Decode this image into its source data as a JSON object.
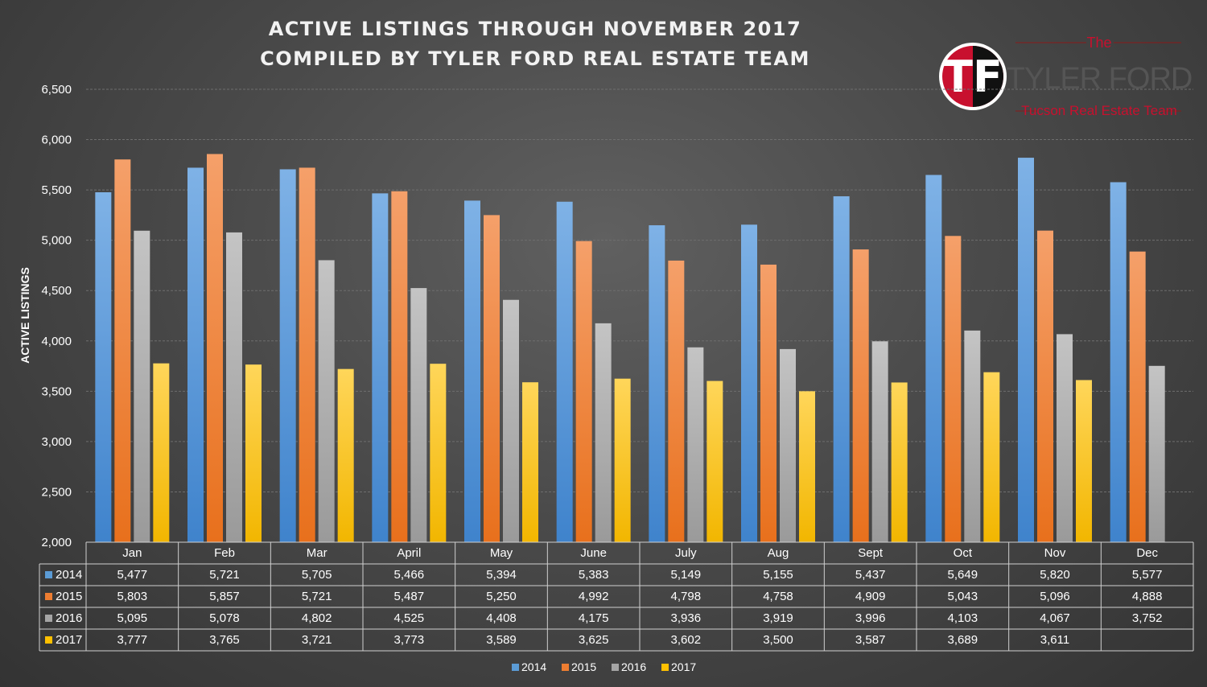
{
  "title_lines": [
    "ACTIVE LISTINGS THROUGH NOVEMBER 2017",
    "COMPILED BY TYLER FORD REAL ESTATE TEAM"
  ],
  "logo": {
    "monogram": "TF",
    "the": "The",
    "name": "TYLER FORD",
    "tagline": "Tucson Real Estate Team"
  },
  "colors": {
    "2014": "#5b9bd5",
    "2015": "#ed7d31",
    "2016": "#a5a5a5",
    "2017": "#ffc000"
  },
  "chart_data": {
    "type": "bar",
    "title": "ACTIVE LISTINGS THROUGH NOVEMBER 2017 COMPILED BY TYLER FORD REAL ESTATE TEAM",
    "ylabel": "ACTIVE LISTINGS",
    "xlabel": "",
    "ylim": [
      2000,
      6500
    ],
    "yticks": [
      2000,
      2500,
      3000,
      3500,
      4000,
      4500,
      5000,
      5500,
      6000,
      6500
    ],
    "ytick_labels": [
      "2,000",
      "2,500",
      "3,000",
      "3,500",
      "4,000",
      "4,500",
      "5,000",
      "5,500",
      "6,000",
      "6,500"
    ],
    "grid": true,
    "legend_position": "bottom",
    "data_table": true,
    "categories": [
      "Jan",
      "Feb",
      "Mar",
      "April",
      "May",
      "June",
      "July",
      "Aug",
      "Sept",
      "Oct",
      "Nov",
      "Dec"
    ],
    "series": [
      {
        "name": "2014",
        "values": [
          5477,
          5721,
          5705,
          5466,
          5394,
          5383,
          5149,
          5155,
          5437,
          5649,
          5820,
          5577
        ],
        "labels": [
          "5,477",
          "5,721",
          "5,705",
          "5,466",
          "5,394",
          "5,383",
          "5,149",
          "5,155",
          "5,437",
          "5,649",
          "5,820",
          "5,577"
        ]
      },
      {
        "name": "2015",
        "values": [
          5803,
          5857,
          5721,
          5487,
          5250,
          4992,
          4798,
          4758,
          4909,
          5043,
          5096,
          4888
        ],
        "labels": [
          "5,803",
          "5,857",
          "5,721",
          "5,487",
          "5,250",
          "4,992",
          "4,798",
          "4,758",
          "4,909",
          "5,043",
          "5,096",
          "4,888"
        ]
      },
      {
        "name": "2016",
        "values": [
          5095,
          5078,
          4802,
          4525,
          4408,
          4175,
          3936,
          3919,
          3996,
          4103,
          4067,
          3752
        ],
        "labels": [
          "5,095",
          "5,078",
          "4,802",
          "4,525",
          "4,408",
          "4,175",
          "3,936",
          "3,919",
          "3,996",
          "4,103",
          "4,067",
          "3,752"
        ]
      },
      {
        "name": "2017",
        "values": [
          3777,
          3765,
          3721,
          3773,
          3589,
          3625,
          3602,
          3500,
          3587,
          3689,
          3611,
          null
        ],
        "labels": [
          "3,777",
          "3,765",
          "3,721",
          "3,773",
          "3,589",
          "3,625",
          "3,602",
          "3,500",
          "3,587",
          "3,689",
          "3,611",
          ""
        ]
      }
    ]
  }
}
